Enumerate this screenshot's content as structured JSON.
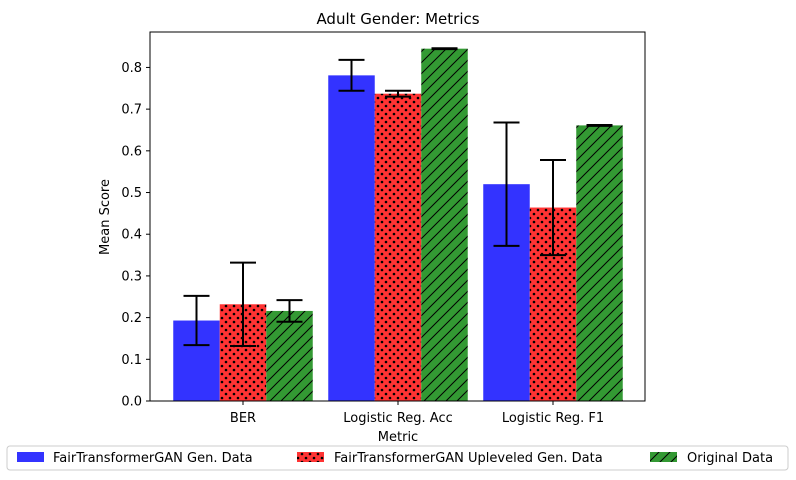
{
  "chart_data": {
    "type": "bar",
    "title": "Adult Gender: Metrics",
    "xlabel": "Metric",
    "ylabel": "Mean Score",
    "categories": [
      "BER",
      "Logistic Reg. Acc",
      "Logistic Reg. F1"
    ],
    "ylim": [
      0,
      0.885
    ],
    "yticks": [
      "0.0",
      "0.1",
      "0.2",
      "0.3",
      "0.4",
      "0.5",
      "0.6",
      "0.7",
      "0.8"
    ],
    "grid": false,
    "legend_position": "bottom",
    "series": [
      {
        "name": "FairTransformerGAN Gen. Data",
        "color": "#3333ff",
        "pattern": "solid",
        "values": [
          0.193,
          0.781,
          0.52
        ],
        "errors": [
          0.059,
          0.037,
          0.148
        ]
      },
      {
        "name": "FairTransformerGAN Upleveled Gen. Data",
        "color": "#ff3333",
        "pattern": "dots",
        "values": [
          0.232,
          0.737,
          0.464
        ],
        "errors": [
          0.1,
          0.007,
          0.114
        ]
      },
      {
        "name": "Original Data",
        "color": "#339933",
        "pattern": "diagonal-hatch",
        "values": [
          0.216,
          0.845,
          0.661
        ],
        "errors": [
          0.026,
          0.001,
          0.001
        ]
      }
    ]
  }
}
